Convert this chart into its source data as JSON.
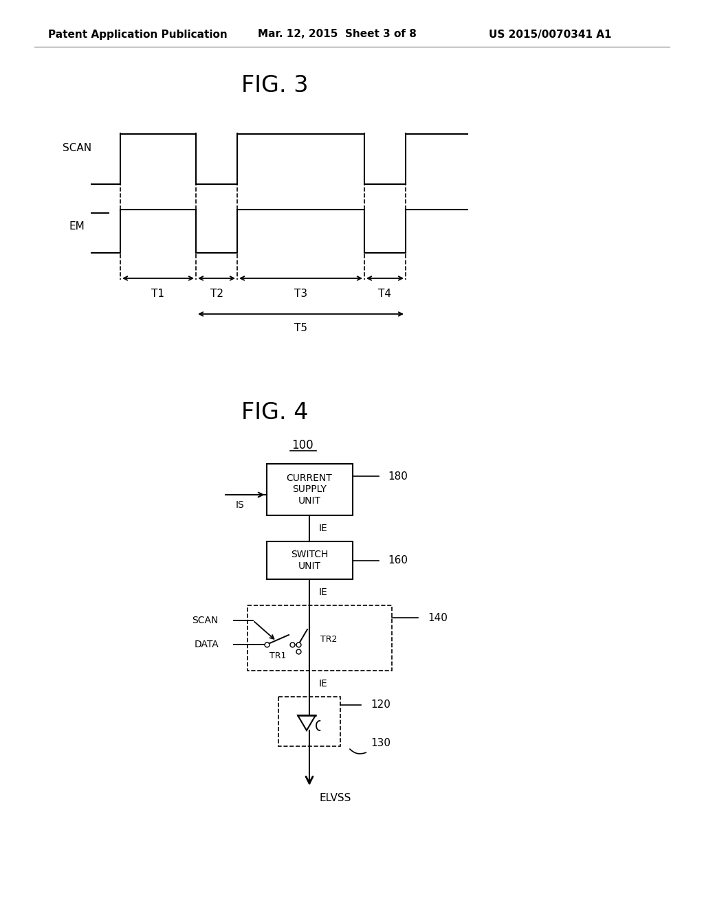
{
  "bg_color": "#ffffff",
  "header_left": "Patent Application Publication",
  "header_mid": "Mar. 12, 2015  Sheet 3 of 8",
  "header_right": "US 2015/0070341 A1",
  "fig3_title": "FIG. 3",
  "fig4_title": "FIG. 4",
  "fig4_label": "100",
  "scan_label": "SCAN",
  "em_label": "EM",
  "t1_label": "T1",
  "t2_label": "T2",
  "t3_label": "T3",
  "t4_label": "T4",
  "t5_label": "T5",
  "box1_text": "CURRENT\nSUPPLY\nUNIT",
  "box1_label": "180",
  "box1_input": "IS",
  "box2_text": "SWITCH\nUNIT",
  "box2_label": "160",
  "box3_label": "140",
  "box3_scan": "SCAN",
  "box3_data": "DATA",
  "tr1_label": "TR1",
  "tr2_label": "TR2",
  "box4_label": "120",
  "box4_label2": "130",
  "ie_label": "IE",
  "elvss_label": "ELVSS",
  "line_color": "#000000",
  "text_color": "#000000"
}
